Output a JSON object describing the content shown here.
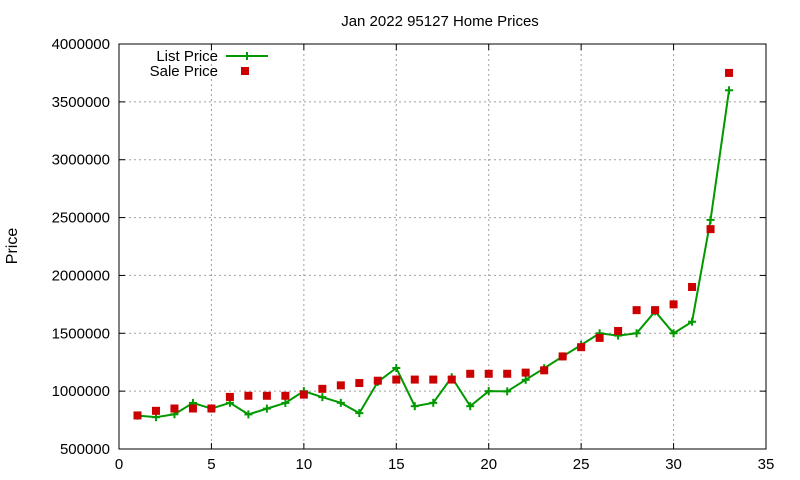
{
  "chart_data": {
    "type": "line",
    "title": "Jan 2022 95127 Home Prices",
    "xlabel": "",
    "ylabel": "Price",
    "xlim": [
      0,
      35
    ],
    "ylim": [
      500000,
      4000000
    ],
    "xticks": [
      0,
      5,
      10,
      15,
      20,
      25,
      30,
      35
    ],
    "yticks": [
      500000,
      1000000,
      1500000,
      2000000,
      2500000,
      3000000,
      3500000,
      4000000
    ],
    "grid": true,
    "legend_position": "top-left",
    "series": [
      {
        "name": "List Price",
        "style": "line-with-plus-markers",
        "color": "#009900",
        "x": [
          1,
          2,
          3,
          4,
          5,
          6,
          7,
          8,
          9,
          10,
          11,
          12,
          13,
          14,
          15,
          16,
          17,
          18,
          19,
          20,
          21,
          22,
          23,
          24,
          25,
          26,
          27,
          28,
          29,
          30,
          31,
          32,
          33
        ],
        "y": [
          788000,
          775000,
          800000,
          898000,
          849000,
          899000,
          799000,
          849000,
          898000,
          1000000,
          948000,
          899000,
          810000,
          1080000,
          1200000,
          870000,
          899000,
          1120000,
          870000,
          1000000,
          998000,
          1098000,
          1198000,
          1300000,
          1399000,
          1500000,
          1480000,
          1500000,
          1690000,
          1500000,
          1600000,
          2480000,
          3600000
        ]
      },
      {
        "name": "Sale Price",
        "style": "square-markers",
        "color": "#cc0000",
        "x": [
          1,
          2,
          3,
          4,
          5,
          6,
          7,
          8,
          9,
          10,
          11,
          12,
          13,
          14,
          15,
          16,
          17,
          18,
          19,
          20,
          21,
          22,
          23,
          24,
          25,
          26,
          27,
          28,
          29,
          30,
          31,
          32,
          33
        ],
        "y": [
          790000,
          830000,
          850000,
          850000,
          850000,
          950000,
          960000,
          960000,
          960000,
          970000,
          1020000,
          1050000,
          1070000,
          1090000,
          1100000,
          1100000,
          1100000,
          1100000,
          1150000,
          1150000,
          1150000,
          1160000,
          1180000,
          1300000,
          1380000,
          1460000,
          1520000,
          1700000,
          1700000,
          1750000,
          1900000,
          2400000,
          3750000
        ]
      }
    ]
  }
}
